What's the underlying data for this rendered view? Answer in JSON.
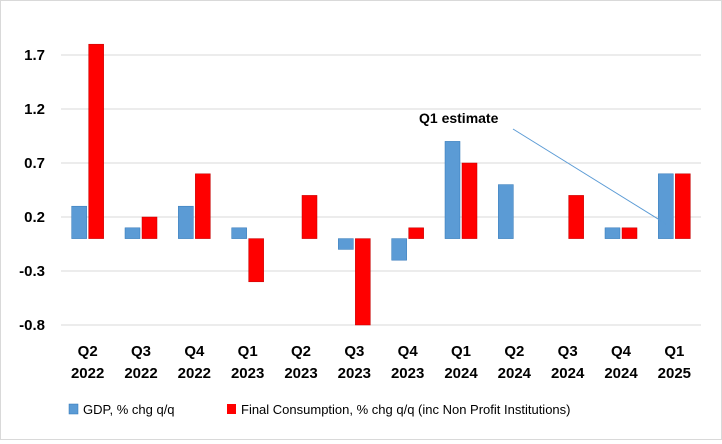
{
  "chart_data": {
    "type": "bar",
    "ylim": [
      -0.8,
      2.2
    ],
    "yticks": [
      1.7,
      1.2,
      0.7,
      0.2,
      -0.3,
      -0.8
    ],
    "ytick_labels": [
      "1.7",
      "1.2",
      "0.7",
      "0.2",
      "-0.3",
      "-0.8"
    ],
    "grid": true,
    "legend_position": "bottom",
    "categories": [
      {
        "quarter": "Q2",
        "year": "2022"
      },
      {
        "quarter": "Q3",
        "year": "2022"
      },
      {
        "quarter": "Q4",
        "year": "2022"
      },
      {
        "quarter": "Q1",
        "year": "2023"
      },
      {
        "quarter": "Q2",
        "year": "2023"
      },
      {
        "quarter": "Q3",
        "year": "2023"
      },
      {
        "quarter": "Q4",
        "year": "2023"
      },
      {
        "quarter": "Q1",
        "year": "2024"
      },
      {
        "quarter": "Q2",
        "year": "2024"
      },
      {
        "quarter": "Q3",
        "year": "2024"
      },
      {
        "quarter": "Q4",
        "year": "2024"
      },
      {
        "quarter": "Q1",
        "year": "2025"
      }
    ],
    "series": [
      {
        "name": "GDP, % chg q/q",
        "color": "#5b9bd5",
        "values": [
          0.3,
          0.1,
          0.3,
          0.1,
          0.0,
          -0.1,
          -0.2,
          0.9,
          0.5,
          0.0,
          0.1,
          0.6
        ]
      },
      {
        "name": "Final Consumption, % chg q/q (inc Non Profit Institutions)",
        "color": "#ff0000",
        "values": [
          1.8,
          0.2,
          0.6,
          -0.4,
          0.4,
          -0.8,
          0.1,
          0.7,
          0.0,
          0.4,
          0.1,
          0.6
        ]
      }
    ],
    "annotation": {
      "text": "Q1 estimate",
      "target_category": 11
    }
  }
}
